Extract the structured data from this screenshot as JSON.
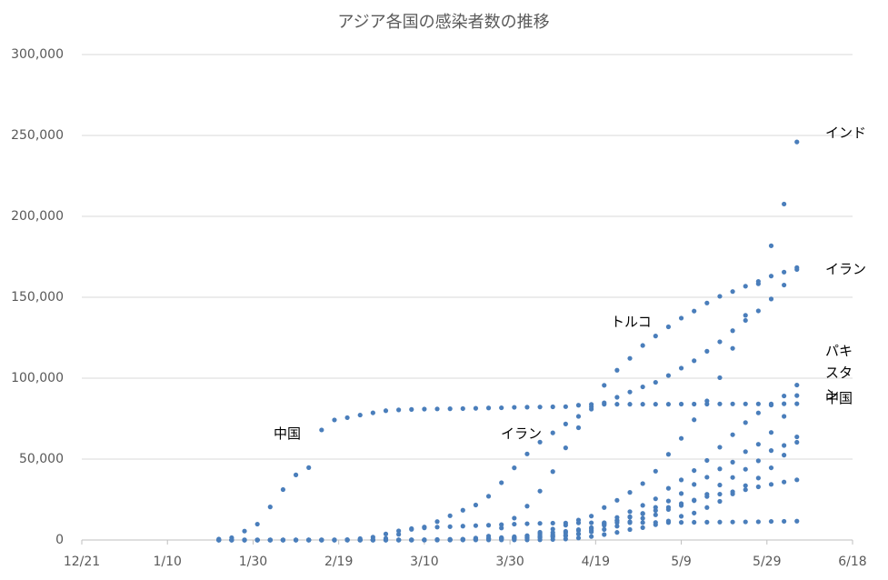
{
  "chart_data": {
    "type": "scatter",
    "title": "アジア各国の感染者数の推移",
    "color": "#4a7ebb",
    "grid": true,
    "x": [
      "1/22",
      "1/25",
      "1/28",
      "1/31",
      "2/3",
      "2/6",
      "2/9",
      "2/12",
      "2/15",
      "2/18",
      "2/21",
      "2/24",
      "2/27",
      "3/1",
      "3/4",
      "3/7",
      "3/10",
      "3/13",
      "3/16",
      "3/19",
      "3/22",
      "3/25",
      "3/28",
      "3/31",
      "4/3",
      "4/6",
      "4/9",
      "4/12",
      "4/15",
      "4/18",
      "4/21",
      "4/24",
      "4/27",
      "4/30",
      "5/3",
      "5/6",
      "5/9",
      "5/12",
      "5/15",
      "5/18",
      "5/21",
      "5/24",
      "5/27",
      "5/30",
      "6/2",
      "6/5"
    ],
    "xlim": [
      "12/21",
      "6/18"
    ],
    "xticks": [
      "12/21",
      "1/10",
      "1/30",
      "2/19",
      "3/10",
      "3/30",
      "4/19",
      "5/9",
      "5/29",
      "6/18"
    ],
    "ylim": [
      0,
      300000
    ],
    "yticks": [
      0,
      {
        "value": 50000,
        "label": "50,000"
      },
      {
        "value": 100000,
        "label": "100,000"
      },
      {
        "value": 150000,
        "label": "150,000"
      },
      {
        "value": 200000,
        "label": "200,000"
      },
      {
        "value": 250000,
        "label": "250,000"
      },
      {
        "value": 300000,
        "label": "300,000"
      }
    ],
    "annotations": [
      "中国",
      "イラン"
    ],
    "series": [
      {
        "name": "中国",
        "values": [
          571,
          1406,
          5509,
          9802,
          20438,
          31161,
          40235,
          44730,
          68000,
          74200,
          75600,
          77200,
          78600,
          79900,
          80400,
          80700,
          80900,
          81000,
          81100,
          81200,
          81400,
          81600,
          81700,
          82000,
          82100,
          82200,
          82300,
          82400,
          83300,
          83800,
          83900,
          83900,
          83900,
          83900,
          83900,
          83900,
          84000,
          84000,
          84000,
          84100,
          84100,
          84100,
          84100,
          84100,
          84200,
          84200
        ]
      },
      {
        "name": "イラン",
        "values": [
          0,
          0,
          0,
          0,
          0,
          0,
          0,
          0,
          0,
          0,
          5,
          61,
          245,
          978,
          3513,
          6566,
          8042,
          11364,
          14991,
          18407,
          21638,
          27017,
          35408,
          44605,
          53183,
          60500,
          66220,
          71686,
          76389,
          80868,
          84802,
          88194,
          91472,
          94640,
          97424,
          101650,
          106220,
          110767,
          116635,
          122492,
          129341,
          135701,
          141591,
          148950,
          157562,
          167156
        ]
      },
      {
        "name": "トルコ",
        "values": [
          0,
          0,
          0,
          0,
          0,
          0,
          0,
          0,
          0,
          0,
          0,
          0,
          0,
          0,
          0,
          0,
          0,
          5,
          47,
          359,
          1236,
          2433,
          7402,
          13531,
          20921,
          30217,
          42282,
          56956,
          69392,
          82329,
          95591,
          104912,
          112261,
          120204,
          126045,
          131744,
          137115,
          141475,
          146457,
          150593,
          153548,
          156827,
          159797,
          163103,
          165555,
          168340
        ]
      },
      {
        "name": "インド",
        "values": [
          0,
          0,
          0,
          1,
          2,
          3,
          3,
          3,
          3,
          3,
          3,
          3,
          3,
          3,
          28,
          34,
          56,
          82,
          114,
          195,
          396,
          657,
          987,
          1397,
          2567,
          4778,
          6725,
          9205,
          12322,
          14792,
          20080,
          24530,
          29435,
          34863,
          42533,
          52952,
          62808,
          74281,
          85940,
          100328,
          118447,
          138845,
          158333,
          181827,
          207615,
          246000
        ]
      },
      {
        "name": "パキスタン",
        "values": [
          0,
          0,
          0,
          0,
          0,
          0,
          0,
          0,
          0,
          0,
          0,
          0,
          2,
          4,
          5,
          6,
          16,
          28,
          187,
          461,
          776,
          1057,
          1495,
          2039,
          2708,
          3864,
          4601,
          5374,
          6383,
          7638,
          9749,
          11940,
          14079,
          16473,
          20186,
          24073,
          28736,
          34336,
          38799,
          43966,
          48091,
          54601,
          59151,
          66457,
          76398,
          89249
        ]
      },
      {
        "values": [
          1,
          2,
          4,
          11,
          15,
          23,
          25,
          28,
          28,
          31,
          204,
          833,
          1766,
          3736,
          5621,
          7041,
          7513,
          7979,
          8236,
          8565,
          8897,
          9137,
          9478,
          9786,
          10062,
          10284,
          10423,
          10512,
          10591,
          10653,
          10683,
          10718,
          10752,
          10774,
          10801,
          10810,
          10874,
          10936,
          11018,
          11078,
          11122,
          11206,
          11265,
          11468,
          11541,
          11668
        ]
      },
      {
        "values": [
          0,
          0,
          0,
          0,
          0,
          0,
          0,
          0,
          0,
          0,
          0,
          0,
          0,
          0,
          1,
          5,
          15,
          86,
          133,
          274,
          562,
          900,
          1203,
          1563,
          2039,
          2605,
          3287,
          4462,
          5862,
          7142,
          10484,
          13930,
          17522,
          21402,
          25459,
          31938,
          37136,
          42925,
          49176,
          57345,
          65077,
          72560,
          78541,
          83384,
          89011,
          95748
        ]
      },
      {
        "values": [
          0,
          0,
          0,
          0,
          0,
          0,
          0,
          0,
          0,
          0,
          0,
          0,
          0,
          1,
          8,
          15,
          24,
          262,
          439,
          460,
          494,
          537,
          634,
          781,
          1325,
          1832,
          2376,
          2979,
          3711,
          5008,
          6533,
          8525,
          11244,
          13409,
          15551,
          18890,
          21331,
          24314,
          28272,
          33969,
          38651,
          43714,
          48947,
          55262,
          58433,
          63741
        ]
      },
      {
        "values": [
          0,
          0,
          0,
          0,
          0,
          0,
          0,
          0,
          0,
          0,
          0,
          0,
          0,
          0,
          0,
          0,
          3,
          3,
          8,
          17,
          27,
          39,
          48,
          51,
          61,
          123,
          330,
          621,
          1231,
          2144,
          3382,
          4689,
          6462,
          7667,
          9455,
          11719,
          14657,
          16660,
          20065,
          23870,
          28511,
          33610,
          38292,
          44608,
          52445,
          60391
        ]
      },
      {
        "values": [
          0,
          3,
          7,
          16,
          18,
          30,
          40,
          50,
          72,
          81,
          86,
          90,
          96,
          106,
          110,
          138,
          160,
          200,
          243,
          385,
          455,
          631,
          802,
          926,
          1114,
          1375,
          1910,
          2532,
          3699,
          5992,
          9125,
          12075,
          14423,
          16169,
          18205,
          20198,
          22460,
          24671,
          26891,
          28343,
          29812,
          31068,
          32876,
          34366,
          35836,
          37183
        ]
      }
    ]
  }
}
